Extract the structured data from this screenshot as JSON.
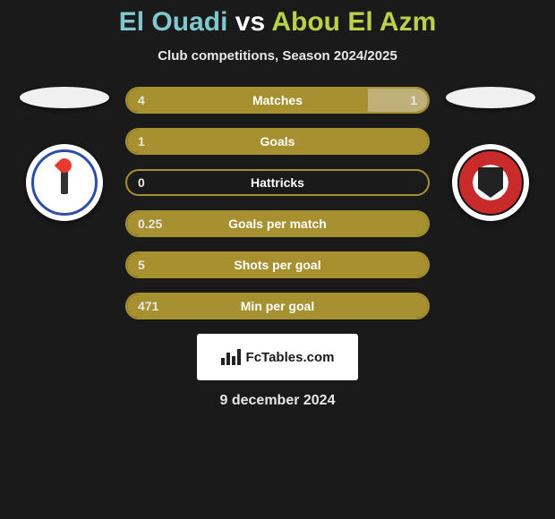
{
  "title": {
    "player_a": "El Ouadi",
    "vs": " vs ",
    "player_b": "Abou El Azm",
    "color_a": "#7fc8cf",
    "color_vs": "#ffffff",
    "color_b": "#b9d04a"
  },
  "subtitle": "Club competitions, Season 2024/2025",
  "stats": {
    "border_empty": "#a6902f",
    "fill_color_a": "#a6902f",
    "fill_color_b": "#bfb079",
    "label_color": "#ffffff",
    "val_color_a": "#e8e8e8",
    "val_color_b": "#e8e8e8",
    "rows": [
      {
        "label": "Matches",
        "a": "4",
        "b": "1",
        "a_pct": 80,
        "b_pct": 20
      },
      {
        "label": "Goals",
        "a": "1",
        "b": "",
        "a_pct": 100,
        "b_pct": 0
      },
      {
        "label": "Hattricks",
        "a": "0",
        "b": "",
        "a_pct": 0,
        "b_pct": 0
      },
      {
        "label": "Goals per match",
        "a": "0.25",
        "b": "",
        "a_pct": 100,
        "b_pct": 0
      },
      {
        "label": "Shots per goal",
        "a": "5",
        "b": "",
        "a_pct": 100,
        "b_pct": 0
      },
      {
        "label": "Min per goal",
        "a": "471",
        "b": "",
        "a_pct": 100,
        "b_pct": 0
      }
    ]
  },
  "footer": {
    "brand": "FcTables.com",
    "date": "9 december 2024"
  },
  "colors": {
    "page_bg": "#1a1a1a"
  }
}
